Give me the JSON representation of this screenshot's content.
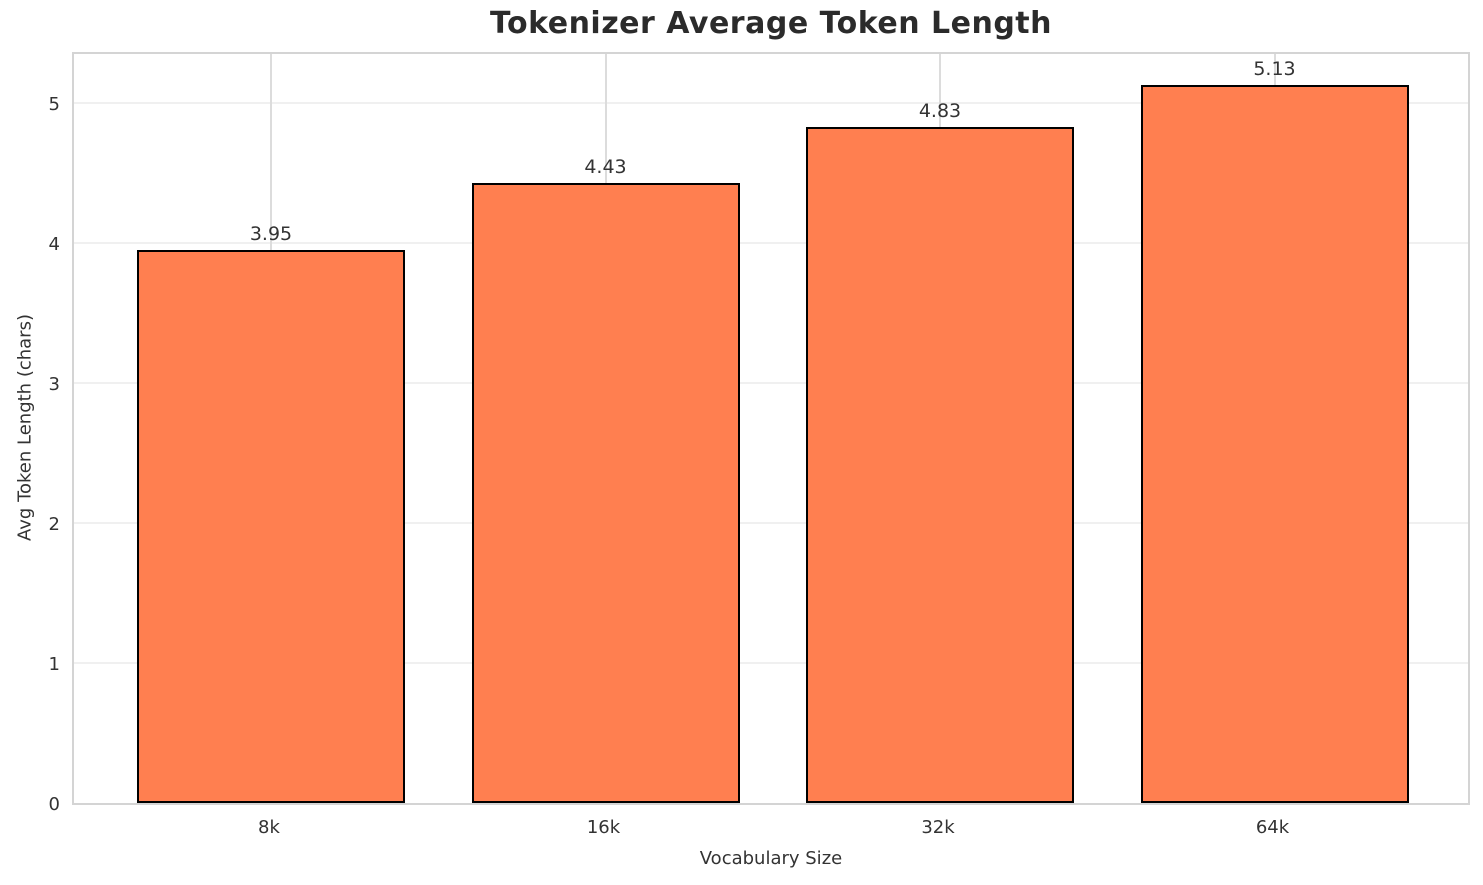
{
  "chart_data": {
    "type": "bar",
    "title": "Tokenizer Average Token Length",
    "xlabel": "Vocabulary Size",
    "ylabel": "Avg Token Length (chars)",
    "categories": [
      "8k",
      "16k",
      "32k",
      "64k"
    ],
    "values": [
      3.95,
      4.43,
      4.83,
      5.13
    ],
    "value_labels": [
      "3.95",
      "4.43",
      "4.83",
      "5.13"
    ],
    "yticks": [
      0,
      1,
      2,
      3,
      4,
      5
    ],
    "ytick_labels": [
      "0",
      "1",
      "2",
      "3",
      "4",
      "5"
    ],
    "ylim": [
      0,
      5.38
    ],
    "legend": null,
    "grid": true,
    "colors": {
      "bar_fill": "#FF7F50",
      "bar_edge": "#000000",
      "grid_h": "#f0f0f0",
      "grid_v": "#dcdcdc",
      "spine": "#d4d4d4",
      "text": "#333333",
      "title_text": "#2b2b2b",
      "background": "#ffffff"
    }
  }
}
